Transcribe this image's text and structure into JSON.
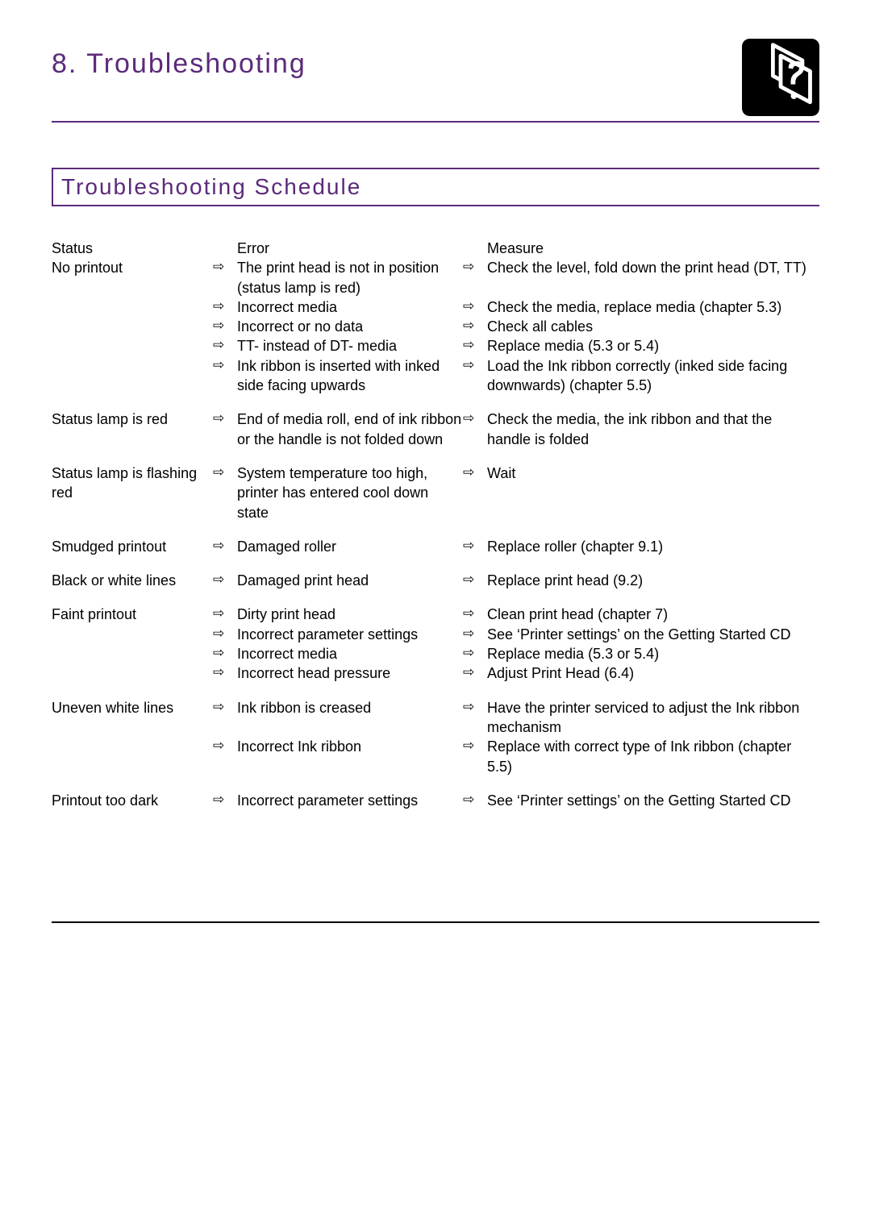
{
  "page_title": "8. Troubleshooting",
  "section_title": "Troubleshooting Schedule",
  "arrow_glyph": "⇨",
  "colors": {
    "accent": "#5b2a7a",
    "text": "#000000",
    "bg": "#ffffff"
  },
  "icon": {
    "name": "question-diamond-icon",
    "bg": "#000000",
    "fg": "#ffffff"
  },
  "headers": {
    "status": "Status",
    "error": "Error",
    "measure": "Measure"
  },
  "rows": [
    {
      "status": "No printout",
      "items": [
        {
          "error": "The print head is not in position (status lamp is red)",
          "measure": "Check the level, fold down the print head (DT, TT)"
        },
        {
          "error": "Incorrect media",
          "measure": "Check the media, replace media (chapter 5.3)"
        },
        {
          "error": "Incorrect or no data",
          "measure": "Check all cables"
        },
        {
          "error": "TT- instead of DT- media",
          "measure": "Replace media (5.3 or 5.4)"
        },
        {
          "error": "Ink ribbon is inserted with inked side facing upwards",
          "measure": "Load the Ink ribbon correctly (inked side facing downwards) (chapter 5.5)"
        }
      ]
    },
    {
      "status": "Status lamp is red",
      "items": [
        {
          "error": "End of media roll, end of ink ribbon or the handle is not folded down",
          "measure": "Check the media, the ink ribbon and that the handle is folded"
        }
      ]
    },
    {
      "status": "Status lamp is flashing red",
      "items": [
        {
          "error": "System temperature too high, printer has entered cool down state",
          "measure": "Wait"
        }
      ]
    },
    {
      "status": "Smudged printout",
      "items": [
        {
          "error": "Damaged roller",
          "measure": "Replace roller (chapter 9.1)"
        }
      ]
    },
    {
      "status": "Black or white lines",
      "items": [
        {
          "error": "Damaged print head",
          "measure": "Replace print head (9.2)"
        }
      ]
    },
    {
      "status": "Faint printout",
      "items": [
        {
          "error": "Dirty print head",
          "measure": "Clean print head (chapter 7)"
        },
        {
          "error": "Incorrect parameter settings",
          "measure": "See ‘Printer settings’ on the Getting Started CD"
        },
        {
          "error": "Incorrect media",
          "measure": "Replace media (5.3 or 5.4)"
        },
        {
          "error": "Incorrect head pressure",
          "measure": "Adjust Print Head (6.4)"
        }
      ]
    },
    {
      "status": "Uneven white lines",
      "items": [
        {
          "error": "Ink ribbon is creased",
          "measure": "Have the printer serviced to adjust the Ink ribbon mechanism"
        },
        {
          "error": "Incorrect Ink ribbon",
          "measure": "Replace with correct type of Ink ribbon (chapter 5.5)"
        }
      ]
    },
    {
      "status": "Printout too dark",
      "items": [
        {
          "error": "Incorrect parameter settings",
          "measure": "See ‘Printer settings’ on the Getting Started CD"
        }
      ]
    }
  ]
}
